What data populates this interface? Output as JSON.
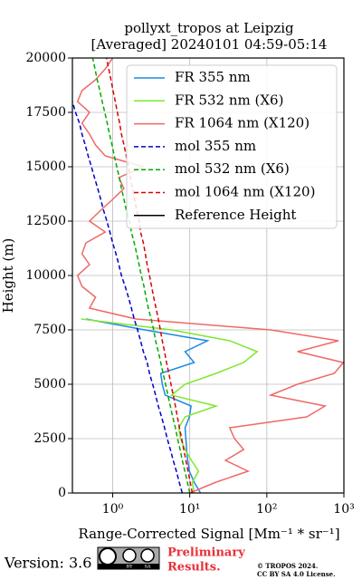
{
  "chart_data": {
    "type": "line",
    "title": "pollyxt_tropos at Leipzig",
    "subtitle": "[Averaged] 20240101 04:59-05:14",
    "x_label": "Range-Corrected Signal [Mm⁻¹ * sr⁻¹]",
    "y_label": "Height (m)",
    "log_x": true,
    "grid": true,
    "legend_position": "upper right",
    "xlim": [
      0.3,
      1000
    ],
    "xticks": [
      {
        "value": 1,
        "label": "10⁰"
      },
      {
        "value": 10,
        "label": "10¹"
      },
      {
        "value": 100,
        "label": "10²"
      },
      {
        "value": 1000,
        "label": "10³"
      }
    ],
    "ylim": [
      0,
      20000
    ],
    "yticks": [
      0,
      2500,
      5000,
      7500,
      10000,
      12500,
      15000,
      17500,
      20000
    ],
    "y": [
      0,
      500,
      1000,
      1500,
      2000,
      2500,
      3000,
      3500,
      4000,
      4500,
      5000,
      5500,
      6000,
      6500,
      7000,
      7500,
      8000,
      8500,
      9000,
      9500,
      10000,
      10500,
      11000,
      11500,
      12000,
      12500,
      13000,
      13500,
      14000,
      14500,
      15000,
      15500,
      16000,
      16500,
      17000,
      17500,
      18000,
      18500,
      19000,
      19500,
      20000
    ],
    "series": [
      {
        "name": "FR 355 nm",
        "color": "#1f88e5",
        "dashed": false,
        "values": [
          13.8,
          11.4,
          9.9,
          9.4,
          9.1,
          8.9,
          8.7,
          9.9,
          10.4,
          4.8,
          4.4,
          4.2,
          11.4,
          8.7,
          17,
          2.6,
          0.45,
          null,
          null,
          null,
          null,
          null,
          null,
          null,
          null,
          null,
          null,
          null,
          null,
          null,
          null,
          null,
          null,
          null,
          null,
          null,
          null,
          null,
          null,
          null,
          null
        ]
      },
      {
        "name": "FR 532 nm (X6)",
        "color": "#7ee830",
        "dashed": false,
        "values": [
          11.4,
          10.8,
          13,
          10.5,
          8.7,
          7.6,
          7.2,
          8.7,
          22,
          5.8,
          8.7,
          22,
          50,
          75,
          33,
          5.8,
          0.39,
          null,
          null,
          null,
          null,
          null,
          null,
          null,
          null,
          null,
          null,
          null,
          null,
          null,
          null,
          null,
          null,
          null,
          null,
          null,
          null,
          null,
          null,
          null,
          null
        ]
      },
      {
        "name": "FR 1064 nm (X120)",
        "color": "#f06868",
        "dashed": false,
        "values": [
          10,
          22,
          57,
          29,
          50,
          38,
          33,
          330,
          570,
          112,
          250,
          750,
          980,
          250,
          850,
          112,
          2,
          0.5,
          0.6,
          0.4,
          0.35,
          0.5,
          0.4,
          0.45,
          0.8,
          0.5,
          0.7,
          1.0,
          1.4,
          1.2,
          2.5,
          0.8,
          0.6,
          0.5,
          0.4,
          0.5,
          0.35,
          0.4,
          0.6,
          0.8,
          1.0
        ]
      },
      {
        "name": "mol 355 nm",
        "color": "#0000cc",
        "dashed": true,
        "values": [
          8.0,
          7.3,
          6.7,
          6.1,
          5.6,
          5.1,
          4.7,
          4.3,
          3.9,
          3.6,
          3.3,
          3.0,
          2.8,
          2.5,
          2.3,
          2.1,
          1.9,
          1.75,
          1.6,
          1.45,
          1.3,
          1.2,
          1.1,
          1.0,
          0.92,
          0.84,
          0.76,
          0.7,
          0.64,
          0.58,
          0.53,
          0.48,
          0.44,
          0.4,
          0.37,
          0.33,
          0.3,
          null,
          null,
          null,
          null
        ]
      },
      {
        "name": "mol 532 nm (X6)",
        "color": "#00aa00",
        "dashed": true,
        "values": [
          10,
          9.3,
          8.65,
          8.0,
          7.5,
          6.95,
          6.5,
          6.0,
          5.6,
          5.2,
          4.85,
          4.5,
          4.2,
          3.9,
          3.6,
          3.4,
          3.15,
          2.9,
          2.7,
          2.55,
          2.35,
          2.2,
          2.05,
          1.9,
          1.75,
          1.65,
          1.5,
          1.4,
          1.3,
          1.22,
          1.13,
          1.05,
          0.98,
          0.91,
          0.85,
          0.79,
          0.73,
          0.68,
          0.63,
          0.59,
          0.55
        ]
      },
      {
        "name": "mol 1064 nm (X120)",
        "color": "#dd0000",
        "dashed": true,
        "values": [
          10.8,
          10.1,
          9.5,
          8.9,
          8.35,
          7.85,
          7.35,
          6.9,
          6.5,
          6.1,
          5.7,
          5.35,
          5.0,
          4.7,
          4.4,
          4.15,
          3.9,
          3.65,
          3.4,
          3.2,
          3.0,
          2.8,
          2.65,
          2.5,
          2.3,
          2.2,
          2.05,
          1.93,
          1.8,
          1.7,
          1.6,
          1.5,
          1.4,
          1.3,
          1.23,
          1.15,
          1.08,
          1.01,
          0.95,
          0.89,
          0.83
        ]
      }
    ],
    "reference_height": {
      "name": "Reference Height",
      "color": "#000000"
    }
  },
  "footer": {
    "version": "Version: 3.6",
    "badge_labels": [
      "BY",
      "SA"
    ],
    "preliminary": [
      "Preliminary",
      "Results."
    ],
    "copyright": [
      "© TROPOS 2024.",
      "CC BY SA 4.0 License."
    ]
  }
}
